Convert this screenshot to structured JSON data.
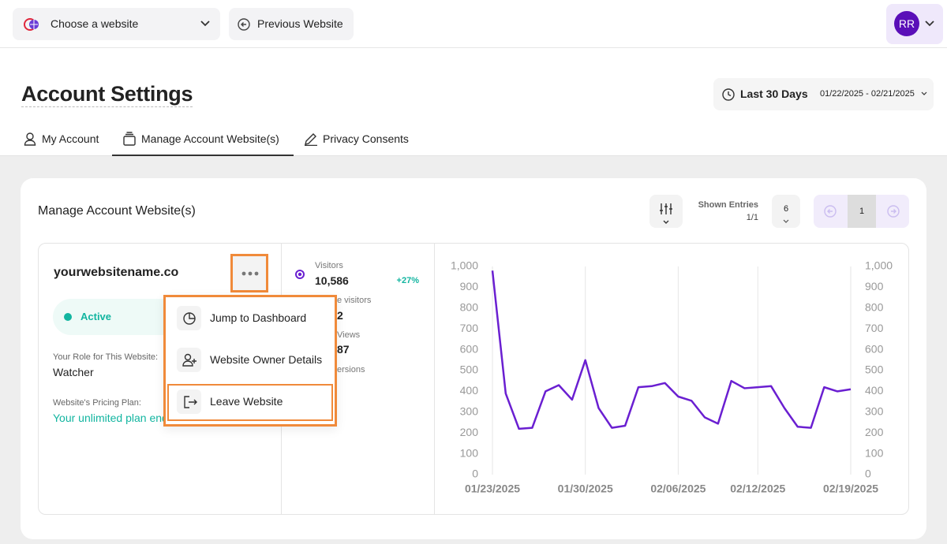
{
  "topbar": {
    "website_select": "Choose a website",
    "previous": "Previous Website",
    "avatar": "RR"
  },
  "header": {
    "title": "Account Settings",
    "range_label": "Last 30 Days",
    "range": "01/22/2025 - 02/21/2025"
  },
  "tabs": [
    "My Account",
    "Manage Account Website(s)",
    "Privacy Consents"
  ],
  "card": {
    "title": "Manage Account Website(s)",
    "shown_entries_label": "Shown Entries",
    "shown_entries": "1/1",
    "per_page": "6",
    "page": "1"
  },
  "website": {
    "name": "yourwebsitename.co",
    "status": "Active",
    "role_label": "Your Role for This Website:",
    "role": "Watcher",
    "plan_label": "Website's Pricing Plan:",
    "plan": "Your unlimited plan end"
  },
  "stats": [
    {
      "label": "Visitors",
      "value": "10,586",
      "change": "+27%"
    },
    {
      "label": "e visitors",
      "value": "2"
    },
    {
      "label": "Views",
      "value": "87"
    },
    {
      "label": "ersions"
    }
  ],
  "menu": [
    "Jump to Dashboard",
    "Website Owner Details",
    "Leave Website"
  ],
  "chart_data": {
    "type": "line",
    "x": [
      "01/23/2025",
      "01/24/2025",
      "01/25/2025",
      "01/26/2025",
      "01/27/2025",
      "01/28/2025",
      "01/29/2025",
      "01/30/2025",
      "01/31/2025",
      "02/01/2025",
      "02/02/2025",
      "02/03/2025",
      "02/04/2025",
      "02/05/2025",
      "02/06/2025",
      "02/07/2025",
      "02/08/2025",
      "02/09/2025",
      "02/10/2025",
      "02/11/2025",
      "02/12/2025",
      "02/13/2025",
      "02/14/2025",
      "02/15/2025",
      "02/16/2025",
      "02/17/2025",
      "02/18/2025",
      "02/19/2025"
    ],
    "xticks": [
      "01/23/2025",
      "01/30/2025",
      "02/06/2025",
      "02/12/2025",
      "02/19/2025"
    ],
    "series": [
      {
        "color": "#6a1fd1",
        "values": [
          980,
          390,
          220,
          225,
          400,
          430,
          360,
          550,
          320,
          225,
          235,
          420,
          425,
          440,
          375,
          355,
          275,
          245,
          450,
          415,
          420,
          425,
          320,
          230,
          225,
          420,
          400,
          410
        ]
      }
    ],
    "ylim": [
      0,
      1000
    ],
    "yticks": [
      0,
      100,
      200,
      300,
      400,
      500,
      600,
      700,
      800,
      900,
      {
        "value": 1000,
        "label": "1,000"
      }
    ],
    "y2lim": [
      0,
      1000
    ],
    "y2ticks": [
      0,
      100,
      200,
      300,
      400,
      500,
      600,
      700,
      800,
      900,
      {
        "value": 1000,
        "label": "1,000"
      }
    ],
    "grid": "x"
  }
}
